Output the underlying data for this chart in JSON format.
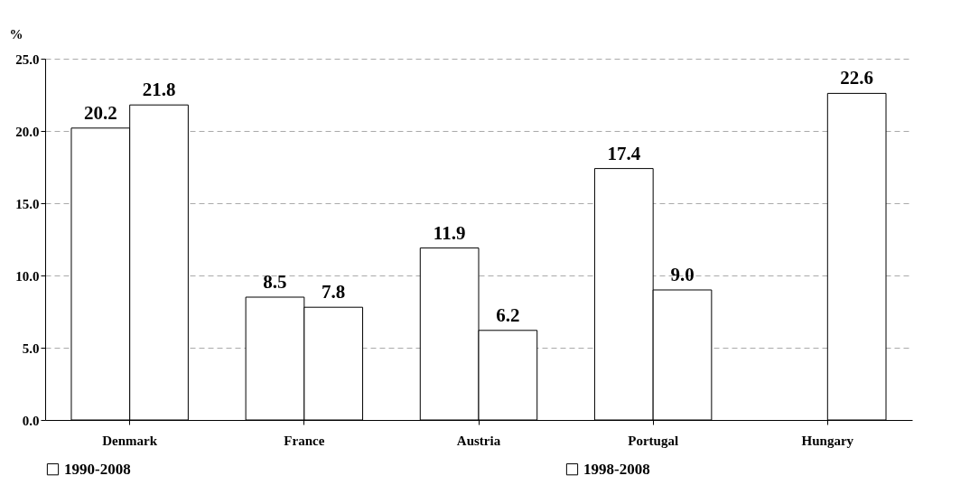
{
  "chart_data": {
    "type": "bar",
    "ylabel": "%",
    "categories": [
      "Denmark",
      "France",
      "Austria",
      "Portugal",
      "Hungary"
    ],
    "series": [
      {
        "name": "1990-2008",
        "color": "#ffffff",
        "values": [
          20.2,
          8.5,
          11.9,
          17.4,
          null
        ],
        "value_labels": [
          "20.2",
          "8.5",
          "11.9",
          "17.4",
          null
        ]
      },
      {
        "name": "1998-2008",
        "color": "#ffffff",
        "values": [
          21.8,
          7.8,
          6.2,
          9.0,
          22.6
        ],
        "value_labels": [
          "21.8",
          "7.8",
          "6.2",
          "9.0",
          "22.6"
        ]
      }
    ],
    "ylim": [
      0,
      25
    ],
    "yticks": [
      {
        "value": 0,
        "label": "0.0"
      },
      {
        "value": 5,
        "label": "5.0"
      },
      {
        "value": 10,
        "label": "10.0"
      },
      {
        "value": 15,
        "label": "15.0"
      },
      {
        "value": 20,
        "label": "20.0"
      },
      {
        "value": 25,
        "label": "25.0"
      }
    ],
    "grid": "y",
    "legend": "bottom"
  }
}
